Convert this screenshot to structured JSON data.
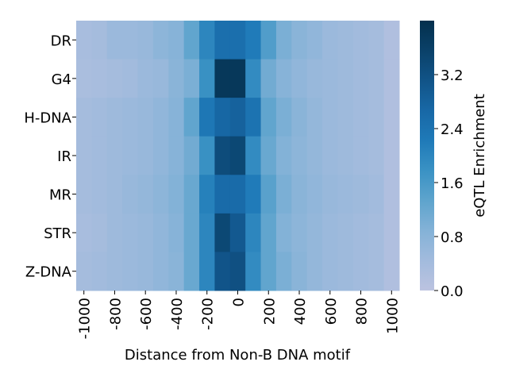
{
  "chart_data": {
    "type": "heatmap",
    "title": "",
    "xlabel": "Distance from Non-B DNA motif",
    "ylabel": "",
    "x_tick_labels": [
      "-1000",
      "-800",
      "-600",
      "-400",
      "-200",
      "0",
      "200",
      "400",
      "600",
      "800",
      "1000"
    ],
    "rows": [
      "DR",
      "G4",
      "H-DNA",
      "IR",
      "MR",
      "STR",
      "Z-DNA"
    ],
    "columns": [
      -1000,
      -900,
      -800,
      -700,
      -600,
      -500,
      -400,
      -300,
      -200,
      -100,
      0,
      100,
      200,
      300,
      400,
      500,
      600,
      700,
      800,
      900,
      1000
    ],
    "values": [
      [
        0.35,
        0.4,
        0.55,
        0.55,
        0.6,
        0.75,
        0.85,
        1.3,
        2.0,
        2.5,
        2.5,
        2.2,
        1.5,
        1.0,
        0.8,
        0.7,
        0.55,
        0.5,
        0.45,
        0.4,
        0.2
      ],
      [
        0.3,
        0.35,
        0.4,
        0.45,
        0.55,
        0.6,
        0.8,
        1.0,
        1.8,
        3.8,
        3.8,
        1.9,
        1.1,
        0.85,
        0.7,
        0.6,
        0.55,
        0.5,
        0.45,
        0.4,
        0.2
      ],
      [
        0.4,
        0.45,
        0.5,
        0.55,
        0.6,
        0.7,
        0.85,
        1.3,
        2.3,
        2.7,
        2.8,
        2.4,
        1.3,
        1.0,
        0.8,
        0.65,
        0.55,
        0.5,
        0.45,
        0.4,
        0.2
      ],
      [
        0.4,
        0.45,
        0.5,
        0.55,
        0.6,
        0.7,
        0.85,
        1.1,
        1.8,
        3.3,
        3.4,
        1.9,
        1.2,
        0.9,
        0.75,
        0.65,
        0.55,
        0.5,
        0.45,
        0.4,
        0.2
      ],
      [
        0.4,
        0.45,
        0.5,
        0.6,
        0.65,
        0.75,
        0.9,
        1.2,
        2.1,
        2.6,
        2.6,
        2.2,
        1.4,
        1.0,
        0.8,
        0.7,
        0.6,
        0.55,
        0.5,
        0.45,
        0.2
      ],
      [
        0.35,
        0.4,
        0.5,
        0.55,
        0.6,
        0.7,
        0.85,
        1.2,
        2.0,
        3.4,
        3.0,
        2.0,
        1.3,
        0.9,
        0.75,
        0.65,
        0.55,
        0.5,
        0.45,
        0.4,
        0.2
      ],
      [
        0.4,
        0.45,
        0.5,
        0.55,
        0.6,
        0.7,
        0.8,
        1.2,
        2.0,
        3.1,
        3.2,
        1.9,
        1.3,
        1.0,
        0.8,
        0.65,
        0.55,
        0.5,
        0.45,
        0.4,
        0.2
      ]
    ],
    "colorbar": {
      "label": "eQTL Enrichment",
      "min": 0.0,
      "max": 4.0,
      "ticks": [
        0.0,
        0.8,
        1.6,
        2.4,
        3.2
      ],
      "tick_labels": [
        "0.0",
        "0.8",
        "1.6",
        "2.4",
        "3.2"
      ],
      "colors": [
        "#bcc3e0",
        "#a2bbdd",
        "#84b2d7",
        "#5ea4cd",
        "#3a92c4",
        "#1f7ab8",
        "#1868a6",
        "#115488",
        "#0a4169",
        "#04304d"
      ]
    },
    "grid": false,
    "legend": "colorbar-right"
  }
}
